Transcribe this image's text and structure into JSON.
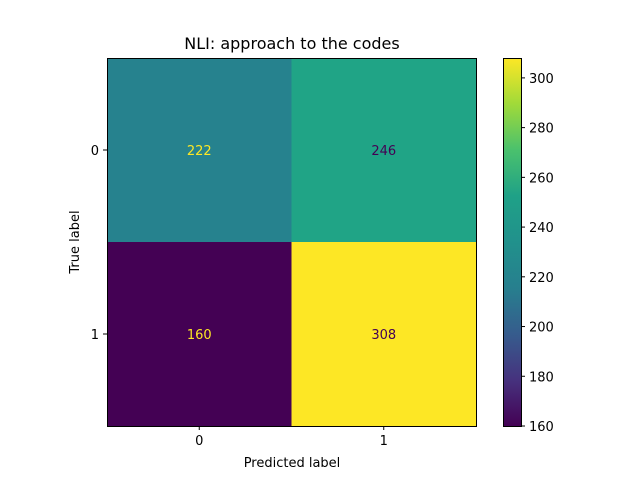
{
  "chart_data": {
    "type": "heatmap",
    "title": "NLI: approach to the codes",
    "xlabel": "Predicted label",
    "ylabel": "True label",
    "x_categories": [
      "0",
      "1"
    ],
    "y_categories": [
      "0",
      "1"
    ],
    "matrix": [
      [
        222,
        246
      ],
      [
        160,
        308
      ]
    ],
    "colormap": "viridis",
    "colorbar": {
      "range": [
        160,
        308
      ],
      "ticks": [
        160,
        180,
        200,
        220,
        240,
        260,
        280,
        300
      ]
    },
    "cell_colors": [
      [
        "#26828e",
        "#20a486"
      ],
      [
        "#440154",
        "#fde725"
      ]
    ],
    "cell_text_colors": [
      [
        "#fde725",
        "#440154"
      ],
      [
        "#fde725",
        "#440154"
      ]
    ]
  }
}
